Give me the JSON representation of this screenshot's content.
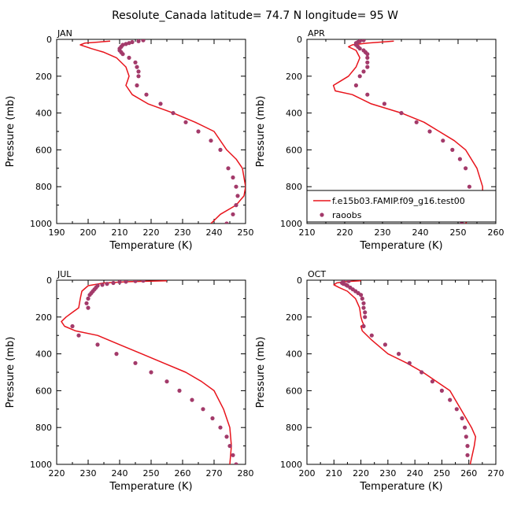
{
  "figure_title": "Resolute_Canada   latitude= 74.7 N longitude= 95 W",
  "colors": {
    "model": "#e8141c",
    "obs": "#a33a6a",
    "axis": "#000000"
  },
  "chart_data": [
    {
      "type": "line",
      "panel": "JAN",
      "xlabel": "Temperature (K)",
      "ylabel": "Pressure (mb)",
      "xlim": [
        190,
        250
      ],
      "xticks": [
        190,
        200,
        210,
        220,
        230,
        240,
        250
      ],
      "ylim": [
        1000,
        0
      ],
      "yticks": [
        0,
        200,
        400,
        600,
        800,
        1000
      ],
      "y_axis_inverted": true,
      "series": [
        {
          "kind": "line",
          "x": [
            207,
            199,
            197.5,
            201,
            205,
            209,
            212,
            213,
            212.5,
            212,
            214,
            219,
            227,
            234,
            240,
            244,
            247,
            249,
            250,
            249.5,
            247,
            242,
            239
          ],
          "y": [
            10,
            20,
            30,
            50,
            70,
            100,
            150,
            200,
            225,
            250,
            300,
            350,
            400,
            450,
            500,
            600,
            650,
            700,
            800,
            850,
            900,
            950,
            1000
          ]
        },
        {
          "kind": "scatter",
          "x": [
            217.5,
            216,
            214,
            213,
            212,
            211,
            210.5,
            210,
            210,
            210.5,
            211,
            213,
            215,
            215.5,
            216,
            216,
            215.5,
            218.5,
            223,
            227,
            231,
            235,
            239,
            242,
            244.5,
            246,
            247,
            247.5,
            247,
            246,
            244
          ],
          "y": [
            5,
            10,
            15,
            20,
            25,
            30,
            40,
            50,
            60,
            70,
            80,
            100,
            125,
            150,
            175,
            200,
            250,
            300,
            350,
            400,
            450,
            500,
            550,
            600,
            700,
            750,
            800,
            850,
            900,
            950,
            1000
          ]
        }
      ]
    },
    {
      "type": "line",
      "panel": "APR",
      "xlabel": "Temperature (K)",
      "ylabel": "Pressure (mb)",
      "xlim": [
        210,
        260
      ],
      "xticks": [
        210,
        220,
        230,
        240,
        250,
        260
      ],
      "ylim": [
        1000,
        0
      ],
      "yticks": [
        0,
        200,
        400,
        600,
        800,
        1000
      ],
      "y_axis_inverted": true,
      "series": [
        {
          "name": "f.e15b03.FAMIP.f09_g16.test00",
          "kind": "line",
          "x": [
            233,
            226,
            222,
            221,
            223,
            224,
            223,
            221,
            219,
            217,
            217.5,
            222,
            227,
            235,
            241,
            245,
            249,
            252,
            255,
            256.5,
            256.5,
            255,
            252
          ],
          "y": [
            10,
            20,
            30,
            40,
            60,
            100,
            150,
            200,
            225,
            250,
            280,
            300,
            350,
            400,
            450,
            500,
            550,
            600,
            700,
            800,
            850,
            900,
            1000
          ]
        },
        {
          "name": "raoobs",
          "kind": "scatter",
          "x": [
            225,
            224,
            223.5,
            223,
            223,
            223,
            223.5,
            224,
            225,
            225.5,
            226,
            226,
            226,
            226,
            225,
            224,
            223,
            226,
            230.5,
            235,
            239,
            242.5,
            246,
            248.5,
            250.5,
            252,
            253,
            253.5,
            253,
            252,
            251
          ],
          "y": [
            5,
            10,
            15,
            20,
            25,
            30,
            40,
            50,
            60,
            70,
            80,
            100,
            125,
            150,
            175,
            200,
            250,
            300,
            350,
            400,
            450,
            500,
            550,
            600,
            650,
            700,
            800,
            850,
            900,
            950,
            1000
          ]
        }
      ],
      "legend": {
        "placement": "bottom-right"
      }
    },
    {
      "type": "line",
      "panel": "JUL",
      "xlabel": "Temperature (K)",
      "ylabel": "Pressure (mb)",
      "xlim": [
        220,
        280
      ],
      "xticks": [
        220,
        230,
        240,
        250,
        260,
        270,
        280
      ],
      "ylim": [
        1000,
        0
      ],
      "yticks": [
        0,
        200,
        400,
        600,
        800,
        1000
      ],
      "y_axis_inverted": true,
      "series": [
        {
          "kind": "line",
          "x": [
            255,
            243,
            235,
            230,
            228,
            227.5,
            227,
            225,
            223,
            221.5,
            222.5,
            226,
            233,
            240,
            247,
            254,
            261,
            266,
            270,
            273,
            275,
            275.5,
            275
          ],
          "y": [
            3,
            8,
            15,
            30,
            60,
            100,
            150,
            175,
            200,
            225,
            250,
            275,
            300,
            350,
            400,
            450,
            500,
            550,
            600,
            700,
            800,
            900,
            1000
          ]
        },
        {
          "kind": "scatter",
          "x": [
            247.5,
            245,
            242,
            240,
            238,
            236,
            234.5,
            233,
            232.5,
            232,
            231.5,
            231,
            230.5,
            230,
            229.5,
            230,
            225,
            227,
            233,
            239,
            245,
            250,
            255,
            259,
            263,
            266.5,
            269.5,
            272,
            274,
            275,
            276,
            277
          ],
          "y": [
            3,
            5,
            8,
            10,
            15,
            20,
            25,
            30,
            40,
            50,
            60,
            70,
            80,
            100,
            125,
            150,
            250,
            300,
            350,
            400,
            450,
            500,
            550,
            600,
            650,
            700,
            750,
            800,
            850,
            900,
            950,
            1000
          ]
        }
      ]
    },
    {
      "type": "line",
      "panel": "OCT",
      "xlabel": "Temperature (K)",
      "ylabel": "Pressure (mb)",
      "xlim": [
        200,
        270
      ],
      "xticks": [
        200,
        210,
        220,
        230,
        240,
        250,
        260,
        270
      ],
      "ylim": [
        1000,
        0
      ],
      "yticks": [
        0,
        200,
        400,
        600,
        800,
        1000
      ],
      "y_axis_inverted": true,
      "series": [
        {
          "kind": "line",
          "x": [
            220,
            214,
            211,
            210,
            212,
            215,
            218,
            219.5,
            220,
            220.5,
            221,
            220,
            220.5,
            224,
            230,
            237,
            243,
            248,
            253,
            257,
            261,
            262.5,
            262,
            260.5
          ],
          "y": [
            3,
            8,
            15,
            25,
            40,
            60,
            100,
            150,
            200,
            225,
            240,
            250,
            275,
            325,
            400,
            450,
            500,
            550,
            600,
            700,
            800,
            850,
            900,
            1000
          ]
        },
        {
          "kind": "scatter",
          "x": [
            215.5,
            213.5,
            213,
            213.5,
            214.5,
            215,
            216,
            217,
            218,
            219,
            220,
            220.5,
            221,
            221,
            221.5,
            221.5,
            221,
            224,
            229,
            234,
            238,
            242.5,
            246.5,
            250,
            253,
            255.5,
            257.5,
            258.5,
            259,
            259.5,
            259.5
          ],
          "y": [
            5,
            10,
            15,
            20,
            25,
            30,
            40,
            50,
            60,
            70,
            80,
            100,
            125,
            150,
            175,
            200,
            250,
            300,
            350,
            400,
            450,
            500,
            550,
            600,
            650,
            700,
            750,
            800,
            850,
            900,
            950
          ]
        }
      ]
    }
  ]
}
